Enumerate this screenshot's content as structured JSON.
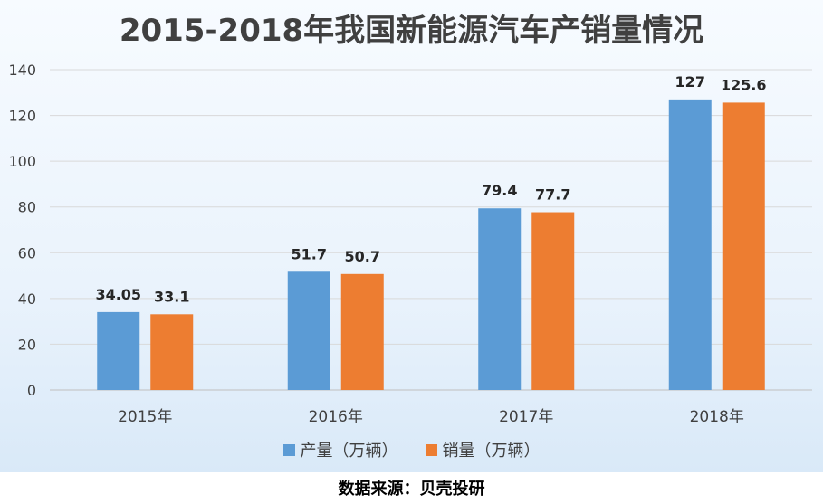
{
  "source_note": "数据来源：贝壳投研",
  "chart_data": {
    "type": "bar",
    "title": "2015-2018年我国新能源汽车产销量情况",
    "categories": [
      "2015年",
      "2016年",
      "2017年",
      "2018年"
    ],
    "series": [
      {
        "name": "产量（万辆）",
        "color": "#5b9bd5",
        "values": [
          34.05,
          51.7,
          79.4,
          127
        ],
        "labels": [
          "34.05",
          "51.7",
          "79.4",
          "127"
        ]
      },
      {
        "name": "销量（万辆）",
        "color": "#ed7d31",
        "values": [
          33.1,
          50.7,
          77.7,
          125.6
        ],
        "labels": [
          "33.1",
          "50.7",
          "77.7",
          "125.6"
        ]
      }
    ],
    "ylim": [
      0,
      140
    ],
    "yticks": [
      "0",
      "20",
      "40",
      "60",
      "80",
      "100",
      "120",
      "140"
    ],
    "grid": true,
    "legend": "bottom"
  }
}
